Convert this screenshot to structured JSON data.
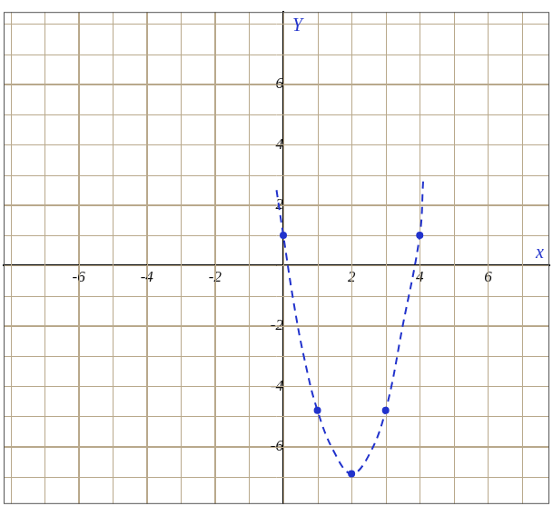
{
  "chart_data": {
    "type": "line",
    "xlabel": "x",
    "ylabel": "Y",
    "x": [
      -0.2,
      0,
      0.3,
      0.6,
      1,
      1.5,
      2,
      2.5,
      3,
      3.5,
      4,
      4.1
    ],
    "series": [
      {
        "color": "#2233cc",
        "line_style": "dashed",
        "marker": "none",
        "values": [
          2.5,
          1,
          -1.2,
          -3,
          -4.8,
          -6.2,
          -6.9,
          -6.3,
          -4.8,
          -2,
          1,
          2.8
        ]
      },
      {
        "color": "#2233cc",
        "line_style": "none",
        "marker": "circle",
        "values": [
          null,
          1,
          null,
          null,
          -4.8,
          null,
          -6.9,
          null,
          -4.8,
          null,
          1,
          null
        ]
      }
    ],
    "xlim": [
      -8.2,
      7.8
    ],
    "xticks": [
      -6,
      -4,
      -2,
      2,
      4,
      6
    ],
    "ylim": [
      -7.9,
      8.4
    ],
    "yticks": [
      -6,
      -4,
      -2,
      2,
      4,
      6
    ],
    "grid": true
  }
}
